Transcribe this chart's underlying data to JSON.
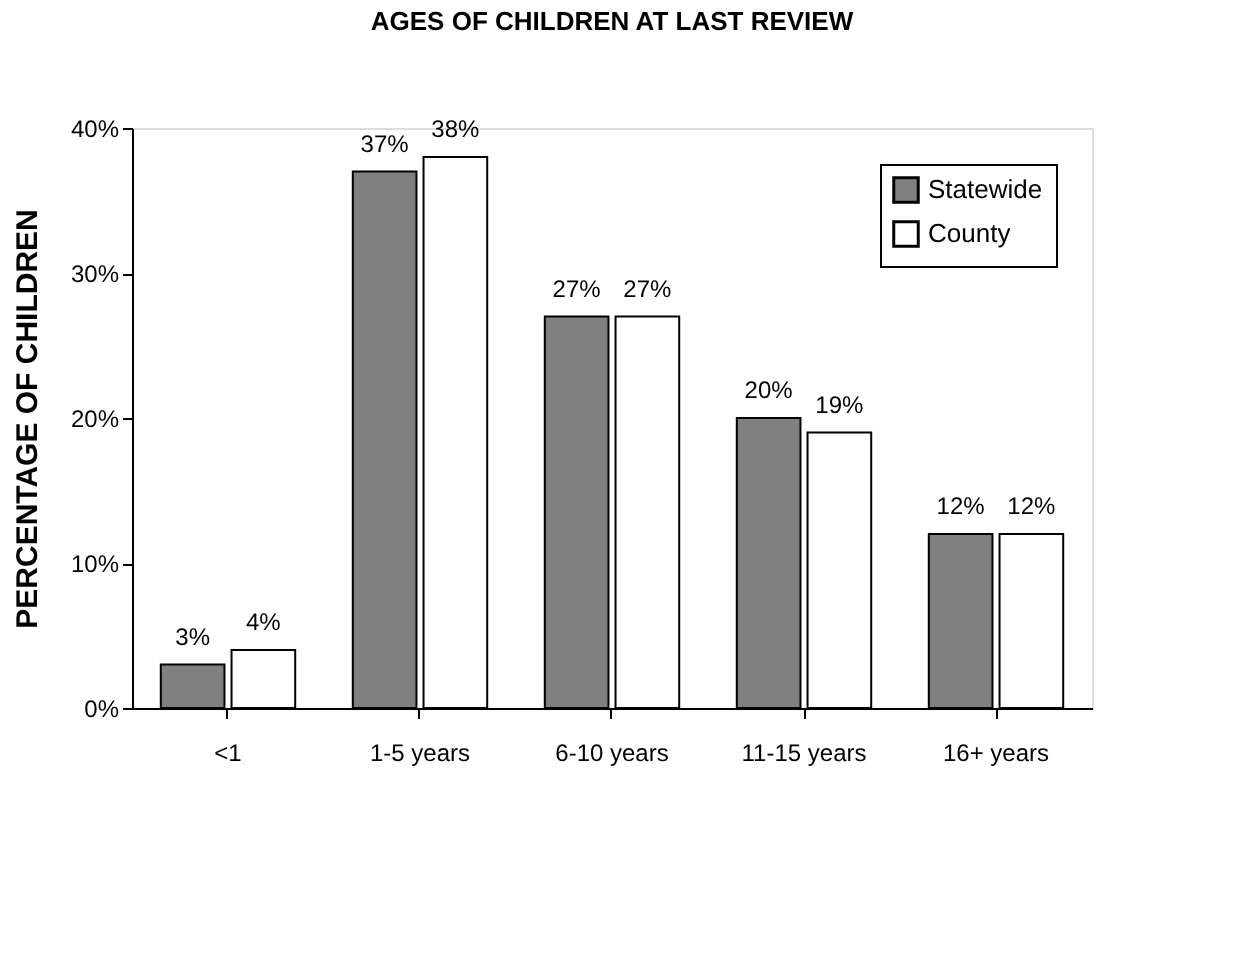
{
  "chart_data": {
    "type": "bar",
    "title": "AGES OF CHILDREN AT LAST REVIEW",
    "ylabel": "PERCENTAGE OF CHILDREN",
    "categories": [
      "<1",
      "1-5 years",
      "6-10 years",
      "11-15 years",
      "16+ years"
    ],
    "series": [
      {
        "name": "Statewide",
        "color": "#808080",
        "values": [
          3,
          37,
          27,
          20,
          12
        ],
        "value_labels": [
          "3%",
          "37%",
          "27%",
          "20%",
          "12%"
        ]
      },
      {
        "name": "County",
        "color": "#ffffff",
        "values": [
          4,
          38,
          27,
          19,
          12
        ],
        "value_labels": [
          "4%",
          "38%",
          "27%",
          "19%",
          "12%"
        ]
      }
    ],
    "ylim": [
      0,
      40
    ],
    "yticks": [
      {
        "value": 0,
        "label": "0%"
      },
      {
        "value": 10,
        "label": "10%"
      },
      {
        "value": 20,
        "label": "20%"
      },
      {
        "value": 30,
        "label": "30%"
      },
      {
        "value": 40,
        "label": "40%"
      }
    ],
    "grid": false,
    "legend": "top right"
  }
}
